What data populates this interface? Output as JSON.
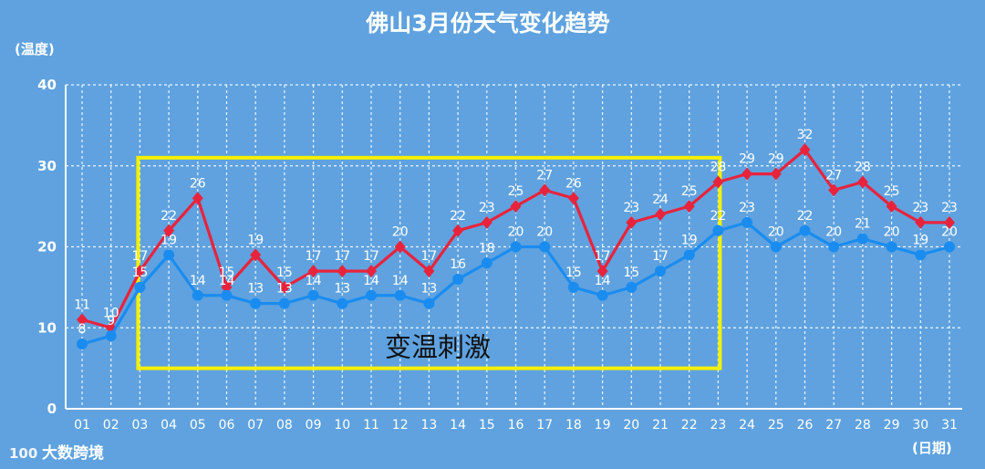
{
  "chart_data": {
    "type": "line",
    "title": "佛山3月份天气变化趋势",
    "ylabel": "(温度)",
    "xlabel": "(日期)",
    "ylim": [
      0,
      40
    ],
    "yticks": [
      0,
      10,
      20,
      30,
      40
    ],
    "grid": true,
    "x": [
      "01",
      "02",
      "03",
      "04",
      "05",
      "06",
      "07",
      "08",
      "09",
      "10",
      "11",
      "12",
      "13",
      "14",
      "15",
      "16",
      "17",
      "18",
      "19",
      "20",
      "21",
      "22",
      "23",
      "24",
      "25",
      "26",
      "27",
      "28",
      "29",
      "30",
      "31"
    ],
    "series": [
      {
        "color": "#e8233c",
        "values": [
          11,
          10,
          17,
          22,
          26,
          15,
          19,
          15,
          17,
          17,
          17,
          20,
          17,
          22,
          23,
          25,
          27,
          26,
          17,
          23,
          24,
          25,
          28,
          29,
          29,
          32,
          27,
          28,
          25,
          23,
          23
        ]
      },
      {
        "color": "#1a8cf0",
        "values": [
          8,
          9,
          15,
          19,
          14,
          14,
          13,
          13,
          14,
          13,
          14,
          14,
          13,
          16,
          18,
          20,
          20,
          15,
          14,
          15,
          17,
          19,
          22,
          23,
          20,
          22,
          20,
          21,
          20,
          19,
          20
        ]
      }
    ],
    "annotation": {
      "text": "变温刺激",
      "x_from": "03",
      "x_to": "23",
      "y_from": 5,
      "y_to": 31,
      "color": "#f5f000"
    }
  },
  "watermark": {
    "text": "大数跨境",
    "logo_text": "100"
  }
}
